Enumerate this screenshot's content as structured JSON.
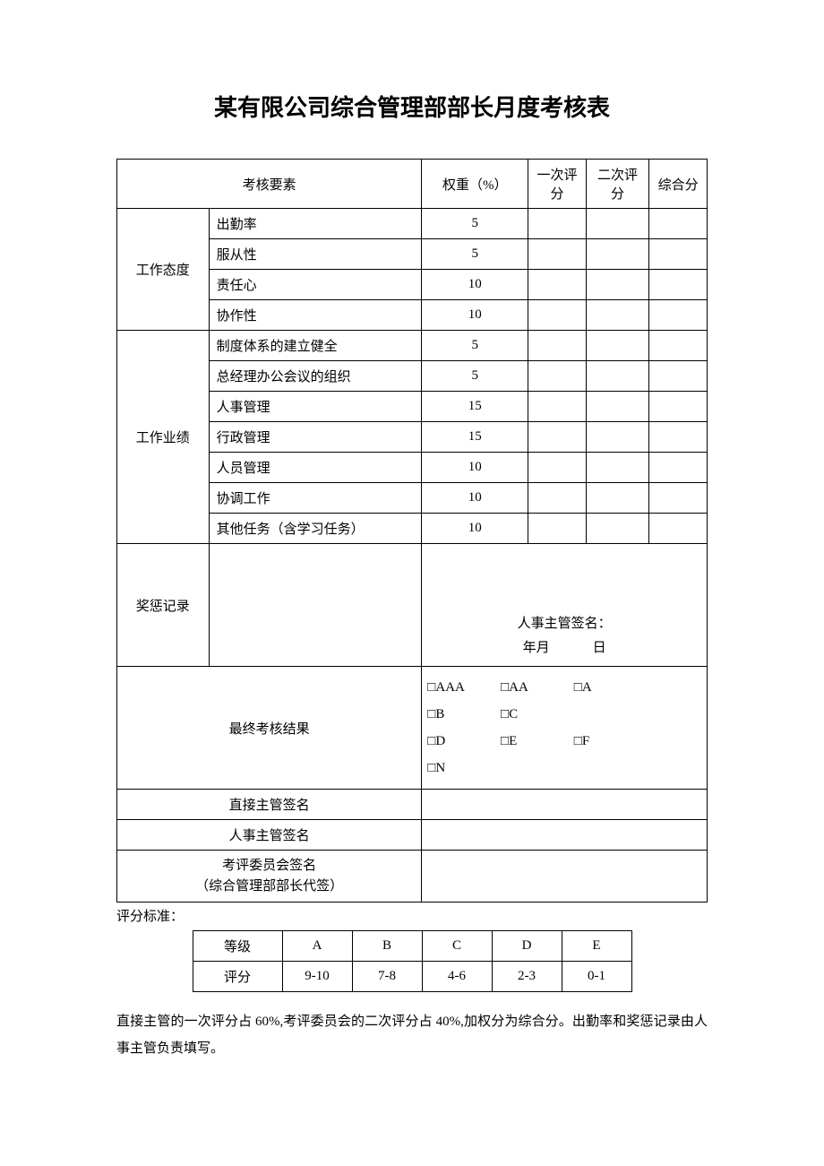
{
  "title": "某有限公司综合管理部部长月度考核表",
  "headers": {
    "assess_element": "考核要素",
    "weight": "权重（%）",
    "score1": "一次评分",
    "score2": "二次评分",
    "total": "综合分"
  },
  "group1": {
    "label": "工作态度",
    "items": [
      {
        "name": "出勤率",
        "weight": "5"
      },
      {
        "name": "服从性",
        "weight": "5"
      },
      {
        "name": "责任心",
        "weight": "10"
      },
      {
        "name": "协作性",
        "weight": "10"
      }
    ]
  },
  "group2": {
    "label": "工作业绩",
    "items": [
      {
        "name": "制度体系的建立健全",
        "weight": "5"
      },
      {
        "name": "总经理办公会议的组织",
        "weight": "5"
      },
      {
        "name": "人事管理",
        "weight": "15"
      },
      {
        "name": "行政管理",
        "weight": "15"
      },
      {
        "name": "人员管理",
        "weight": "10"
      },
      {
        "name": "协调工作",
        "weight": "10"
      },
      {
        "name": "其他任务（含学习任务）",
        "weight": "10"
      }
    ]
  },
  "record_label": "奖惩记录",
  "hr_sign_label": "人事主管签名：",
  "date_year": "年",
  "date_month": "月",
  "date_day": "日",
  "final_result_label": "最终考核结果",
  "result_options": [
    "□AAA",
    "□AA",
    "□A",
    "□B",
    "□C",
    "□D",
    "□E",
    "□F",
    "□N"
  ],
  "sign_direct": "直接主管签名",
  "sign_hr": "人事主管签名",
  "sign_committee_l1": "考评委员会签名",
  "sign_committee_l2": "（综合管理部部长代签）",
  "standard_label": "评分标准：",
  "grade_header": "等级",
  "score_header": "评分",
  "grades": [
    {
      "g": "A",
      "s": "9-10"
    },
    {
      "g": "B",
      "s": "7-8"
    },
    {
      "g": "C",
      "s": "4-6"
    },
    {
      "g": "D",
      "s": "2-3"
    },
    {
      "g": "E",
      "s": "0-1"
    }
  ],
  "footer_note": "直接主管的一次评分占 60%,考评委员会的二次评分占 40%,加权分为综合分。出勤率和奖惩记录由人事主管负责填写。",
  "colors": {
    "text": "#000000",
    "background": "#ffffff",
    "border": "#000000"
  },
  "typography": {
    "title_fontsize": 26,
    "body_fontsize": 15,
    "title_font": "SimHei",
    "body_font": "SimSun"
  }
}
